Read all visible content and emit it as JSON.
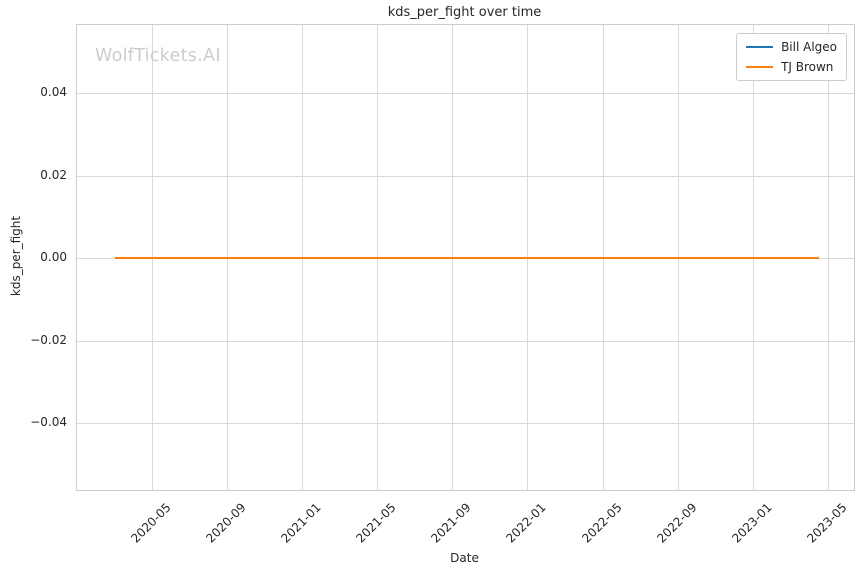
{
  "chart_data": {
    "type": "line",
    "title": "kds_per_fight over time",
    "xlabel": "Date",
    "ylabel": "kds_per_fight",
    "watermark": "WolfTickets.AI",
    "grid": true,
    "legend": {
      "position": "upper right",
      "entries": [
        {
          "label": "Bill Algeo",
          "color": "#1f77b4"
        },
        {
          "label": "TJ Brown",
          "color": "#ff7f0e"
        }
      ]
    },
    "x_axis": {
      "unit": "months since 2020-01",
      "min": 0,
      "max": 41.4,
      "ticks": [
        {
          "pos": 4,
          "label": "2020-05"
        },
        {
          "pos": 8,
          "label": "2020-09"
        },
        {
          "pos": 12,
          "label": "2021-01"
        },
        {
          "pos": 16,
          "label": "2021-05"
        },
        {
          "pos": 20,
          "label": "2021-09"
        },
        {
          "pos": 24,
          "label": "2022-01"
        },
        {
          "pos": 28,
          "label": "2022-05"
        },
        {
          "pos": 32,
          "label": "2022-09"
        },
        {
          "pos": 36,
          "label": "2023-01"
        },
        {
          "pos": 40,
          "label": "2023-05"
        }
      ]
    },
    "y_axis": {
      "min": -0.0562,
      "max": 0.0566,
      "ticks": [
        {
          "pos": 0.04,
          "label": "0.04"
        },
        {
          "pos": 0.02,
          "label": "0.02"
        },
        {
          "pos": 0.0,
          "label": "0.00"
        },
        {
          "pos": -0.02,
          "label": "−0.02"
        },
        {
          "pos": -0.04,
          "label": "−0.04"
        }
      ]
    },
    "series": [
      {
        "name": "Bill Algeo",
        "color": "#1f77b4",
        "x": [
          2.0,
          39.55
        ],
        "dates_estimated": [
          "2020-03",
          "2023-04"
        ],
        "values": [
          0.0,
          0.0
        ]
      },
      {
        "name": "TJ Brown",
        "color": "#ff7f0e",
        "x": [
          2.0,
          39.55
        ],
        "dates_estimated": [
          "2020-03",
          "2023-04"
        ],
        "values": [
          0.0,
          0.0
        ]
      }
    ]
  }
}
